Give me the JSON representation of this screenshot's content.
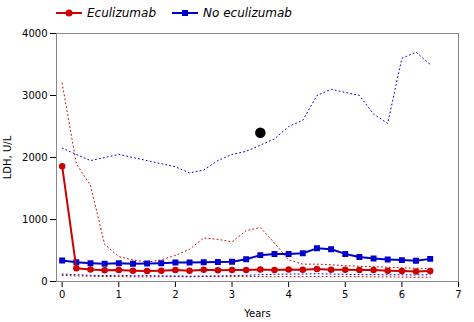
{
  "chart_data": {
    "type": "line",
    "xlabel": "Years",
    "ylabel": "LDH, U/L",
    "x": [
      0,
      0.25,
      0.5,
      0.75,
      1.0,
      1.25,
      1.5,
      1.75,
      2.0,
      2.25,
      2.5,
      2.75,
      3.0,
      3.25,
      3.5,
      3.75,
      4.0,
      4.25,
      4.5,
      4.75,
      5.0,
      5.25,
      5.5,
      5.75,
      6.0,
      6.25,
      6.5
    ],
    "series": [
      {
        "color": "#cc0000",
        "line_style": "dotted",
        "values": [
          100,
          90,
          85,
          80,
          80,
          75,
          75,
          78,
          80,
          75,
          80,
          78,
          78,
          80,
          80,
          78,
          80,
          78,
          80,
          78,
          80,
          78,
          75,
          75,
          72,
          68,
          70
        ]
      },
      {
        "color": "#cc0000",
        "line_style": "dotted",
        "values": [
          3200,
          1900,
          1550,
          600,
          400,
          350,
          310,
          350,
          420,
          520,
          700,
          680,
          640,
          820,
          870,
          620,
          350,
          280,
          280,
          270,
          255,
          245,
          240,
          230,
          220,
          215,
          210
        ]
      },
      {
        "color": "#0000cc",
        "line_style": "dotted",
        "values": [
          120,
          110,
          100,
          95,
          100,
          92,
          95,
          90,
          90,
          85,
          88,
          90,
          95,
          100,
          110,
          115,
          120,
          120,
          125,
          120,
          115,
          110,
          110,
          108,
          108,
          105,
          110
        ]
      },
      {
        "color": "#0000cc",
        "line_style": "dotted",
        "values": [
          2150,
          2050,
          1950,
          2000,
          2050,
          2000,
          1950,
          1900,
          1850,
          1750,
          1800,
          1950,
          2050,
          2100,
          2200,
          2300,
          2500,
          2600,
          3000,
          3100,
          3050,
          3000,
          2700,
          2550,
          3600,
          3700,
          3500
        ]
      },
      {
        "name": "No eculizumab",
        "color": "#0000cc",
        "line_style": "solid",
        "marker": "square",
        "values": [
          340,
          310,
          295,
          285,
          295,
          285,
          290,
          295,
          305,
          305,
          310,
          315,
          320,
          360,
          425,
          445,
          445,
          455,
          535,
          520,
          445,
          395,
          370,
          355,
          345,
          335,
          365
        ]
      },
      {
        "name": "Eculizumab",
        "color": "#cc0000",
        "line_style": "solid",
        "marker": "circle",
        "values": [
          1860,
          215,
          195,
          180,
          185,
          175,
          170,
          175,
          185,
          175,
          190,
          180,
          185,
          185,
          195,
          185,
          195,
          190,
          200,
          190,
          190,
          185,
          185,
          175,
          170,
          160,
          170
        ]
      },
      {
        "color": "#000000",
        "line_style": "none",
        "marker": "circle",
        "values": [
          null,
          null,
          null,
          null,
          null,
          null,
          null,
          null,
          null,
          null,
          null,
          null,
          null,
          null,
          2400,
          null,
          null,
          null,
          null,
          null,
          null,
          null,
          null,
          null,
          null,
          null,
          null
        ]
      }
    ],
    "xlim": [
      -0.1,
      7
    ],
    "ylim": [
      0,
      4000
    ],
    "xticks": [
      0,
      1,
      2,
      3,
      4,
      5,
      6,
      7
    ],
    "yticks": [
      0,
      1000,
      2000,
      3000,
      4000
    ],
    "grid": false,
    "legend": "upper left"
  }
}
